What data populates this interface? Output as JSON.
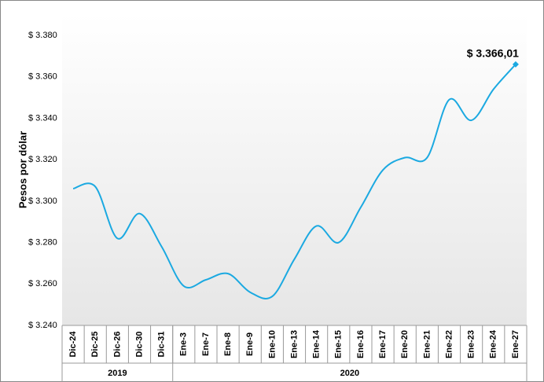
{
  "chart_data": {
    "type": "line",
    "y_label": "Pesos por dólar",
    "categories": [
      "Dic-24",
      "Dic-25",
      "Dic-26",
      "Dic-30",
      "Dic-31",
      "Ene-3",
      "Ene-7",
      "Ene-8",
      "Ene-9",
      "Ene-10",
      "Ene-13",
      "Ene-14",
      "Ene-15",
      "Ene-16",
      "Ene-17",
      "Ene-20",
      "Ene-21",
      "Ene-22",
      "Ene-23",
      "Ene-24",
      "Ene-27"
    ],
    "groups": [
      {
        "label": "2019",
        "count": 5
      },
      {
        "label": "2020",
        "count": 16
      }
    ],
    "series": [
      {
        "name": "Pesos por dólar",
        "color": "#1ba9e1",
        "values": [
          3306,
          3307,
          3282,
          3294,
          3278,
          3259,
          3262,
          3265,
          3256,
          3254,
          3272,
          3288,
          3280,
          3297,
          3315,
          3321,
          3321,
          3349,
          3339,
          3354,
          3366.01
        ]
      }
    ],
    "annotation": "$ 3.366,01",
    "ylim": [
      3240,
      3380
    ],
    "yticks": [
      {
        "value": 3240,
        "label": "$ 3.240"
      },
      {
        "value": 3260,
        "label": "$ 3.260"
      },
      {
        "value": 3280,
        "label": "$ 3.280"
      },
      {
        "value": 3300,
        "label": "$ 3.300"
      },
      {
        "value": 3320,
        "label": "$ 3.320"
      },
      {
        "value": 3340,
        "label": "$ 3.340"
      },
      {
        "value": 3360,
        "label": "$ 3.360"
      },
      {
        "value": 3380,
        "label": "$ 3.380"
      }
    ]
  }
}
